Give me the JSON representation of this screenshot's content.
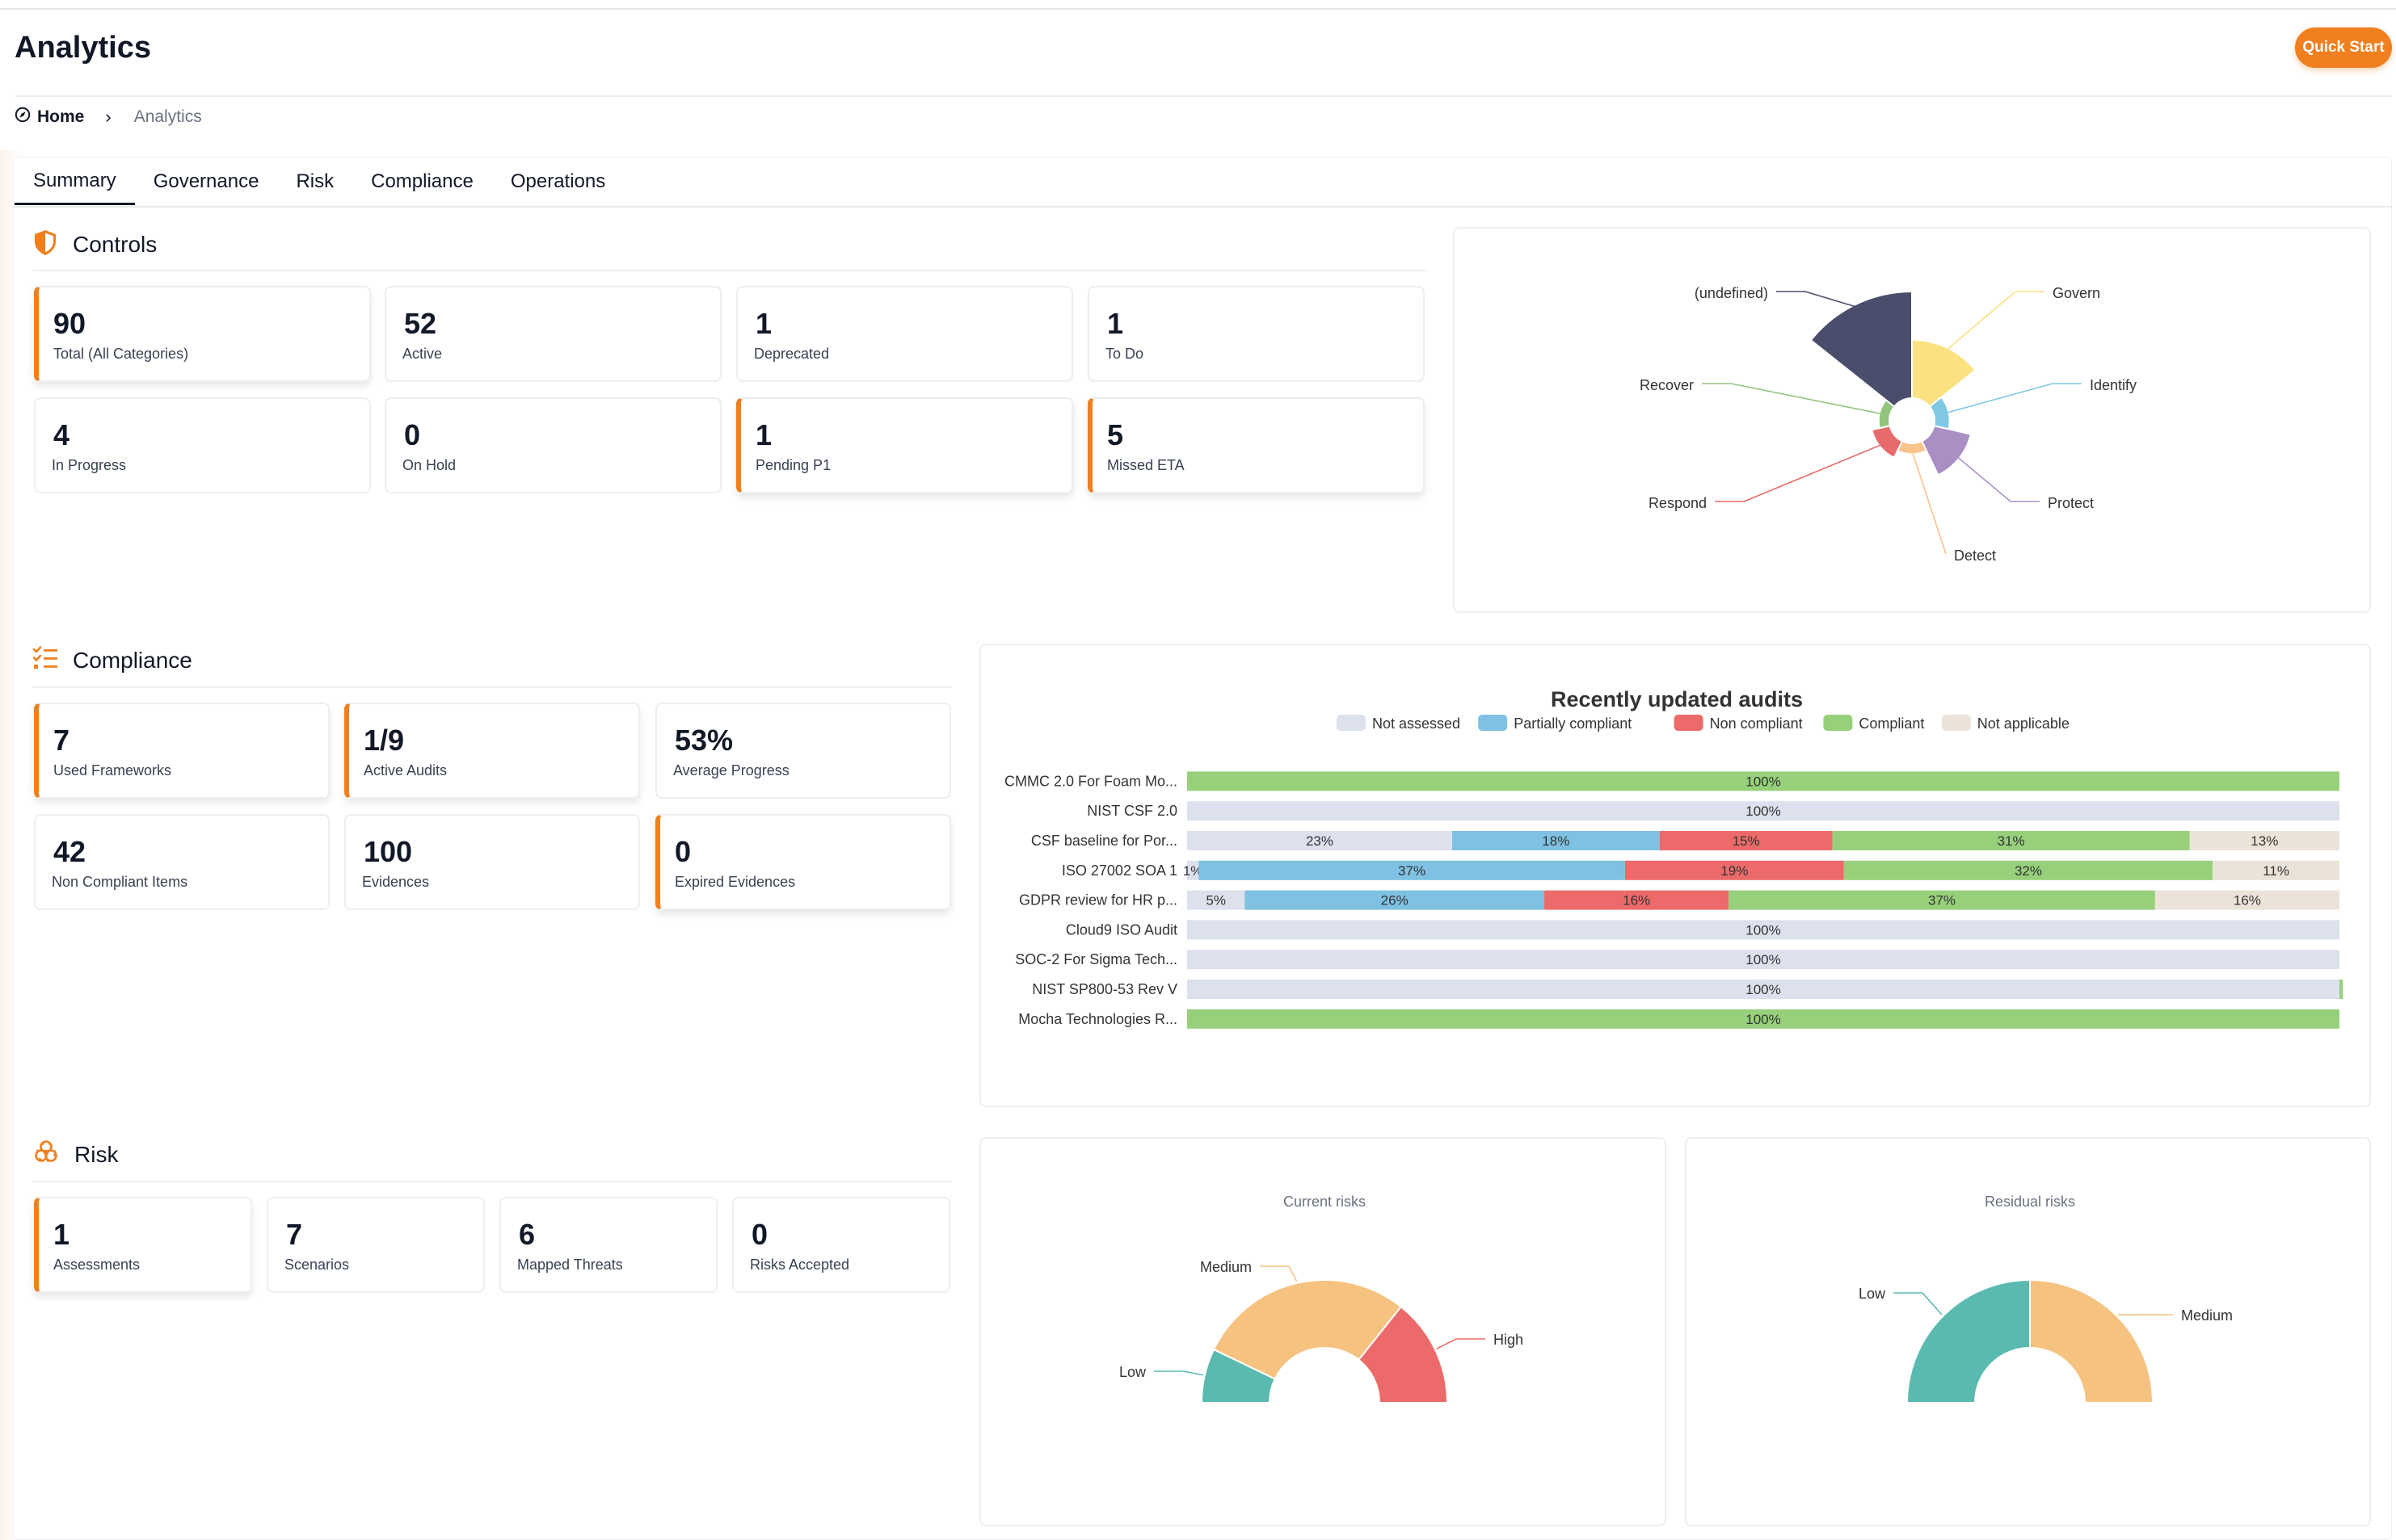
{
  "header": {
    "title": "Analytics",
    "quick_start": "Quick Start"
  },
  "breadcrumb": {
    "home": "Home",
    "separator": "›",
    "current": "Analytics"
  },
  "tabs": [
    {
      "label": "Summary",
      "active": true
    },
    {
      "label": "Governance",
      "active": false
    },
    {
      "label": "Risk",
      "active": false
    },
    {
      "label": "Compliance",
      "active": false
    },
    {
      "label": "Operations",
      "active": false
    }
  ],
  "colors": {
    "accent": "#f07f1f"
  },
  "controls": {
    "title": "Controls",
    "cards": [
      {
        "value": "90",
        "label": "Total (All Categories)",
        "highlight": true
      },
      {
        "value": "52",
        "label": "Active",
        "highlight": false
      },
      {
        "value": "1",
        "label": "Deprecated",
        "highlight": false
      },
      {
        "value": "1",
        "label": "To Do",
        "highlight": false
      },
      {
        "value": "4",
        "label": "In Progress",
        "highlight": false
      },
      {
        "value": "0",
        "label": "On Hold",
        "highlight": false
      },
      {
        "value": "1",
        "label": "Pending P1",
        "highlight": true
      },
      {
        "value": "5",
        "label": "Missed ETA",
        "highlight": true
      }
    ]
  },
  "compliance": {
    "title": "Compliance",
    "cards": [
      {
        "value": "7",
        "label": "Used Frameworks",
        "highlight": true
      },
      {
        "value": "1/9",
        "label": "Active Audits",
        "highlight": true
      },
      {
        "value": "53%",
        "label": "Average Progress",
        "highlight": false
      },
      {
        "value": "42",
        "label": "Non Compliant Items",
        "highlight": false
      },
      {
        "value": "100",
        "label": "Evidences",
        "highlight": false
      },
      {
        "value": "0",
        "label": "Expired Evidences",
        "highlight": true
      }
    ]
  },
  "risk": {
    "title": "Risk",
    "cards": [
      {
        "value": "1",
        "label": "Assessments",
        "highlight": true
      },
      {
        "value": "7",
        "label": "Scenarios",
        "highlight": false
      },
      {
        "value": "6",
        "label": "Mapped Threats",
        "highlight": false
      },
      {
        "value": "0",
        "label": "Risks Accepted",
        "highlight": false
      }
    ]
  },
  "chart_data": [
    {
      "type": "pie",
      "variant": "nightingale-rose",
      "title": "",
      "categories": [
        "(undefined)",
        "Govern",
        "Identify",
        "Protect",
        "Detect",
        "Respond",
        "Recover"
      ],
      "values": [
        20,
        6,
        0.4,
        2.5,
        0.2,
        0.6,
        0.2
      ],
      "colors": [
        "#4a4d6b",
        "#fbe180",
        "#7ec8e3",
        "#a98fc4",
        "#f9c38c",
        "#e86b6b",
        "#93c47d"
      ]
    },
    {
      "type": "bar",
      "orientation": "horizontal",
      "stacked": true,
      "title": "Recently updated audits",
      "legend_position": "top",
      "categories": [
        "CMMC 2.0 For Foam Mo...",
        "NIST CSF 2.0",
        "CSF baseline for Por...",
        "ISO 27002 SOA 1",
        "GDPR review for HR p...",
        "Cloud9 ISO Audit",
        "SOC-2 For Sigma Tech...",
        "NIST SP800-53 Rev V",
        "Mocha Technologies R..."
      ],
      "series": [
        {
          "name": "Not assessed",
          "color": "#dde1ee",
          "values": [
            0,
            100,
            23,
            1,
            5,
            100,
            100,
            100,
            0
          ]
        },
        {
          "name": "Partially compliant",
          "color": "#7ec1e2",
          "values": [
            0,
            0,
            18,
            37,
            26,
            0,
            0,
            0,
            0
          ]
        },
        {
          "name": "Non compliant",
          "color": "#ec6a6a",
          "values": [
            0,
            0,
            15,
            19,
            16,
            0,
            0,
            0,
            0
          ]
        },
        {
          "name": "Compliant",
          "color": "#97d07a",
          "values": [
            100,
            0,
            31,
            32,
            37,
            0,
            0,
            0.3,
            100
          ]
        },
        {
          "name": "Not applicable",
          "color": "#ebe3d8",
          "values": [
            0,
            0,
            13,
            11,
            16,
            0,
            0,
            0,
            0
          ]
        }
      ],
      "xlim": [
        0,
        100
      ]
    },
    {
      "type": "pie",
      "variant": "half-donut",
      "title": "Current risks",
      "categories": [
        "Low",
        "Medium",
        "High"
      ],
      "values": [
        1,
        4,
        2
      ],
      "colors": [
        "#5bbab0",
        "#f6c27f",
        "#ec6a6a"
      ]
    },
    {
      "type": "pie",
      "variant": "half-donut",
      "title": "Residual risks",
      "categories": [
        "Low",
        "Medium"
      ],
      "values": [
        1,
        1
      ],
      "colors": [
        "#5bbab0",
        "#f6c27f"
      ]
    }
  ]
}
